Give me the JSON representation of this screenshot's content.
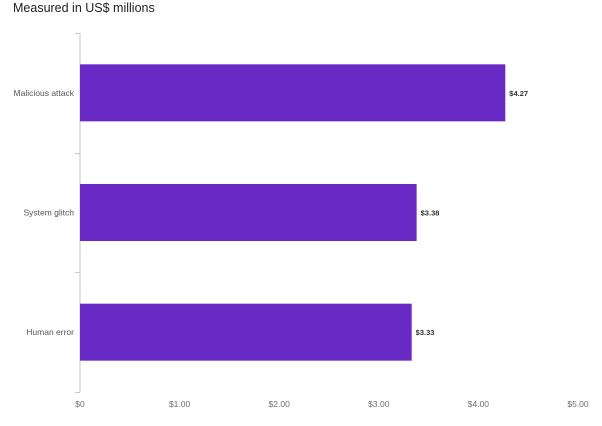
{
  "chart_data": {
    "type": "bar",
    "orientation": "horizontal",
    "title": "",
    "subtitle": "Measured in US$ millions",
    "xlabel": "",
    "ylabel": "",
    "categories": [
      "Malicious attack",
      "System glitch",
      "Human error"
    ],
    "values": [
      4.27,
      3.38,
      3.33
    ],
    "data_labels": [
      "$4.27",
      "$3.38",
      "$3.33"
    ],
    "xlim": [
      0,
      5
    ],
    "x_ticks": [
      0,
      1,
      2,
      3,
      4,
      5
    ],
    "x_tick_labels": [
      "$0",
      "$1.00",
      "$2.00",
      "$3.00",
      "$4.00",
      "$5.00"
    ],
    "grid": false,
    "legend": "none",
    "bar_color": "#6929c4"
  }
}
